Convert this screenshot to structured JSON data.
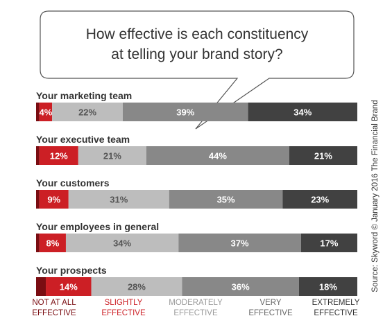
{
  "chart_data": {
    "type": "bar",
    "orientation": "horizontal",
    "stacked": true,
    "title": [
      "How effective is each constituency",
      "at telling your brand story?"
    ],
    "source": "Source: Skyword © January 2016 The Financial Brand",
    "categories": [
      "Your marketing team",
      "Your executive team",
      "Your customers",
      "Your employees in general",
      "Your prospects"
    ],
    "series": [
      {
        "name": "NOT AT ALL EFFECTIVE",
        "legend_lines": [
          "NOT AT ALL",
          "EFFECTIVE"
        ],
        "color": "#7a0d12",
        "label_color": "#7a0d12",
        "values": [
          1,
          1,
          1,
          1,
          3
        ]
      },
      {
        "name": "SLIGHTLY EFFECTIVE",
        "legend_lines": [
          "SLIGHTLY",
          "EFFECTIVE"
        ],
        "color": "#cc1f25",
        "label_color": "#cc1f25",
        "values": [
          4,
          12,
          9,
          8,
          14
        ]
      },
      {
        "name": "MODERATELY EFFECTIVE",
        "legend_lines": [
          "MODERATELY",
          "EFFECTIVE"
        ],
        "color": "#bdbdbd",
        "label_color": "#9a9a9a",
        "values": [
          22,
          21,
          31,
          34,
          28
        ]
      },
      {
        "name": "VERY EFFECTIVE",
        "legend_lines": [
          "VERY",
          "EFFECTIVE"
        ],
        "color": "#888888",
        "label_color": "#666666",
        "values": [
          39,
          44,
          35,
          37,
          36
        ]
      },
      {
        "name": "EXTREMELY EFFECTIVE",
        "legend_lines": [
          "EXTREMELY",
          "EFFECTIVE"
        ],
        "color": "#414141",
        "label_color": "#333333",
        "values": [
          34,
          21,
          23,
          17,
          18
        ]
      }
    ],
    "value_labels": [
      [
        null,
        "4%",
        "22%",
        "39%",
        "34%"
      ],
      [
        null,
        "12%",
        "21%",
        "44%",
        "21%"
      ],
      [
        null,
        "9%",
        "31%",
        "35%",
        "23%"
      ],
      [
        null,
        "8%",
        "34%",
        "37%",
        "17%"
      ],
      [
        null,
        "14%",
        "28%",
        "36%",
        "18%"
      ]
    ],
    "xlim": [
      0,
      100
    ],
    "grid": false,
    "legend": "bottom"
  }
}
